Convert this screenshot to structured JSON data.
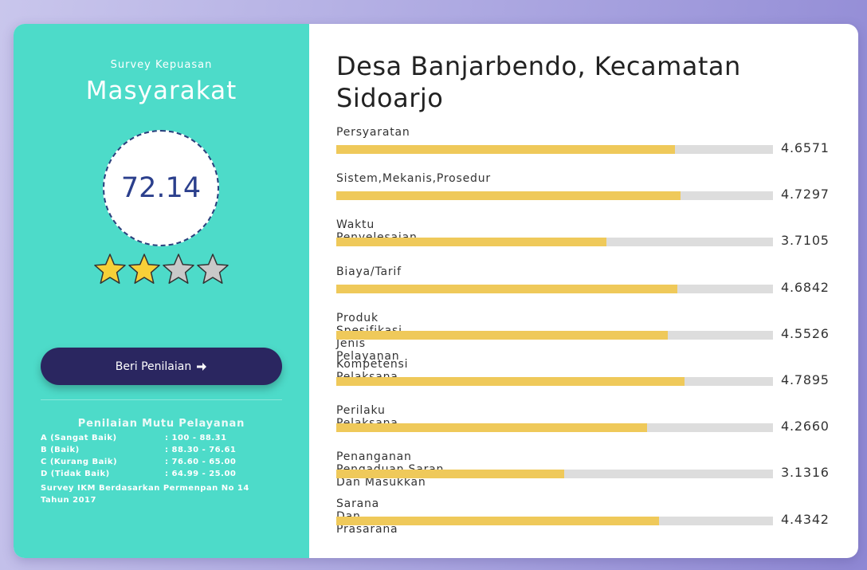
{
  "left_panel": {
    "kicker": "Survey Kepuasan",
    "title": "Masyarakat",
    "score": "72.14",
    "rating": 2,
    "rating_max": 4,
    "button": "Beri Penilaian",
    "legend_title": "Penilaian Mutu Pelayanan",
    "legend_rows": [
      [
        "A (Sangat Baik)",
        ": 100 - 88.31"
      ],
      [
        "B (Baik)",
        ": 88.30 - 76.61"
      ],
      [
        "C (Kurang Baik)",
        ": 76.60 - 65.00"
      ],
      [
        "D (Tidak Baik)",
        ": 64.99 - 25.00"
      ]
    ],
    "note": "Survey IKM Berdasarkan Permenpan No 14 Tahun 2017"
  },
  "chart_data": {
    "type": "bar",
    "title": "Desa Banjarbendo, Kecamatan Sidoarjo",
    "categories": [
      "Persyaratan",
      "Sistem,Mekanis,Prosedur",
      "Waktu Penyelesaian",
      "Biaya/Tarif",
      "Produk Spesifikasi Jenis Pelayanan",
      "Kompetensi Pelaksana",
      "Perilaku Pelaksana",
      "Penanganan Pengaduan,Saran Dan Masukkan",
      "Sarana Dan Prasarana"
    ],
    "values": [
      4.6571,
      4.7297,
      3.7105,
      4.6842,
      4.5526,
      4.7895,
      4.266,
      3.1316,
      4.4342
    ],
    "value_labels": [
      "4.6571",
      "4.7297",
      "3.7105",
      "4.6842",
      "4.5526",
      "4.7895",
      "4.2660",
      "3.1316",
      "4.4342"
    ],
    "xlim": [
      0,
      6
    ],
    "color": "#efc95a"
  }
}
